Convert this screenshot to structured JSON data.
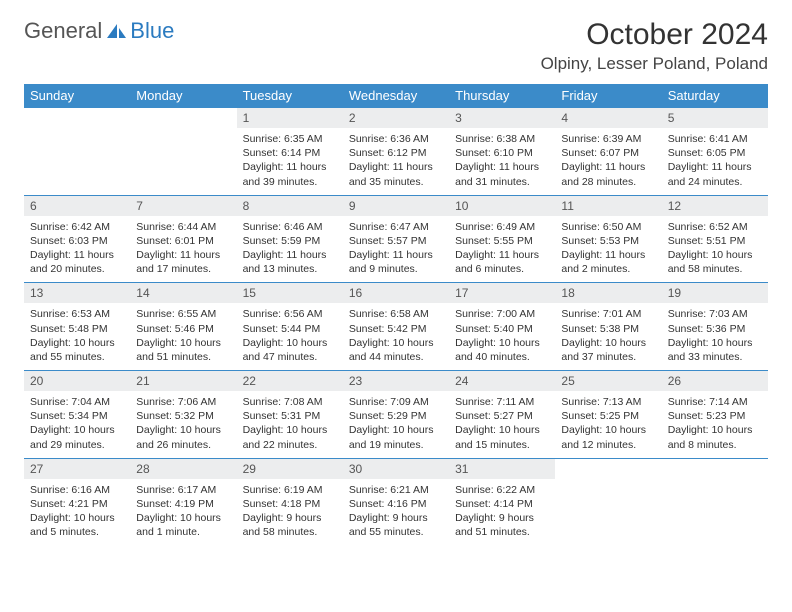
{
  "brand": {
    "part1": "General",
    "part2": "Blue"
  },
  "colors": {
    "header_bg": "#3b8bc9",
    "header_text": "#ffffff",
    "daynum_bg": "#ecedee",
    "border": "#3b8bc9",
    "logo_blue": "#2b7bc0",
    "page_bg": "#ffffff"
  },
  "title": "October 2024",
  "location": "Olpiny, Lesser Poland, Poland",
  "weekdays": [
    "Sunday",
    "Monday",
    "Tuesday",
    "Wednesday",
    "Thursday",
    "Friday",
    "Saturday"
  ],
  "layout": {
    "first_weekday_index": 2,
    "days_in_month": 31
  },
  "days": {
    "1": {
      "sunrise": "6:35 AM",
      "sunset": "6:14 PM",
      "daylight": "11 hours and 39 minutes."
    },
    "2": {
      "sunrise": "6:36 AM",
      "sunset": "6:12 PM",
      "daylight": "11 hours and 35 minutes."
    },
    "3": {
      "sunrise": "6:38 AM",
      "sunset": "6:10 PM",
      "daylight": "11 hours and 31 minutes."
    },
    "4": {
      "sunrise": "6:39 AM",
      "sunset": "6:07 PM",
      "daylight": "11 hours and 28 minutes."
    },
    "5": {
      "sunrise": "6:41 AM",
      "sunset": "6:05 PM",
      "daylight": "11 hours and 24 minutes."
    },
    "6": {
      "sunrise": "6:42 AM",
      "sunset": "6:03 PM",
      "daylight": "11 hours and 20 minutes."
    },
    "7": {
      "sunrise": "6:44 AM",
      "sunset": "6:01 PM",
      "daylight": "11 hours and 17 minutes."
    },
    "8": {
      "sunrise": "6:46 AM",
      "sunset": "5:59 PM",
      "daylight": "11 hours and 13 minutes."
    },
    "9": {
      "sunrise": "6:47 AM",
      "sunset": "5:57 PM",
      "daylight": "11 hours and 9 minutes."
    },
    "10": {
      "sunrise": "6:49 AM",
      "sunset": "5:55 PM",
      "daylight": "11 hours and 6 minutes."
    },
    "11": {
      "sunrise": "6:50 AM",
      "sunset": "5:53 PM",
      "daylight": "11 hours and 2 minutes."
    },
    "12": {
      "sunrise": "6:52 AM",
      "sunset": "5:51 PM",
      "daylight": "10 hours and 58 minutes."
    },
    "13": {
      "sunrise": "6:53 AM",
      "sunset": "5:48 PM",
      "daylight": "10 hours and 55 minutes."
    },
    "14": {
      "sunrise": "6:55 AM",
      "sunset": "5:46 PM",
      "daylight": "10 hours and 51 minutes."
    },
    "15": {
      "sunrise": "6:56 AM",
      "sunset": "5:44 PM",
      "daylight": "10 hours and 47 minutes."
    },
    "16": {
      "sunrise": "6:58 AM",
      "sunset": "5:42 PM",
      "daylight": "10 hours and 44 minutes."
    },
    "17": {
      "sunrise": "7:00 AM",
      "sunset": "5:40 PM",
      "daylight": "10 hours and 40 minutes."
    },
    "18": {
      "sunrise": "7:01 AM",
      "sunset": "5:38 PM",
      "daylight": "10 hours and 37 minutes."
    },
    "19": {
      "sunrise": "7:03 AM",
      "sunset": "5:36 PM",
      "daylight": "10 hours and 33 minutes."
    },
    "20": {
      "sunrise": "7:04 AM",
      "sunset": "5:34 PM",
      "daylight": "10 hours and 29 minutes."
    },
    "21": {
      "sunrise": "7:06 AM",
      "sunset": "5:32 PM",
      "daylight": "10 hours and 26 minutes."
    },
    "22": {
      "sunrise": "7:08 AM",
      "sunset": "5:31 PM",
      "daylight": "10 hours and 22 minutes."
    },
    "23": {
      "sunrise": "7:09 AM",
      "sunset": "5:29 PM",
      "daylight": "10 hours and 19 minutes."
    },
    "24": {
      "sunrise": "7:11 AM",
      "sunset": "5:27 PM",
      "daylight": "10 hours and 15 minutes."
    },
    "25": {
      "sunrise": "7:13 AM",
      "sunset": "5:25 PM",
      "daylight": "10 hours and 12 minutes."
    },
    "26": {
      "sunrise": "7:14 AM",
      "sunset": "5:23 PM",
      "daylight": "10 hours and 8 minutes."
    },
    "27": {
      "sunrise": "6:16 AM",
      "sunset": "4:21 PM",
      "daylight": "10 hours and 5 minutes."
    },
    "28": {
      "sunrise": "6:17 AM",
      "sunset": "4:19 PM",
      "daylight": "10 hours and 1 minute."
    },
    "29": {
      "sunrise": "6:19 AM",
      "sunset": "4:18 PM",
      "daylight": "9 hours and 58 minutes."
    },
    "30": {
      "sunrise": "6:21 AM",
      "sunset": "4:16 PM",
      "daylight": "9 hours and 55 minutes."
    },
    "31": {
      "sunrise": "6:22 AM",
      "sunset": "4:14 PM",
      "daylight": "9 hours and 51 minutes."
    }
  },
  "labels": {
    "sunrise": "Sunrise:",
    "sunset": "Sunset:",
    "daylight": "Daylight:"
  }
}
